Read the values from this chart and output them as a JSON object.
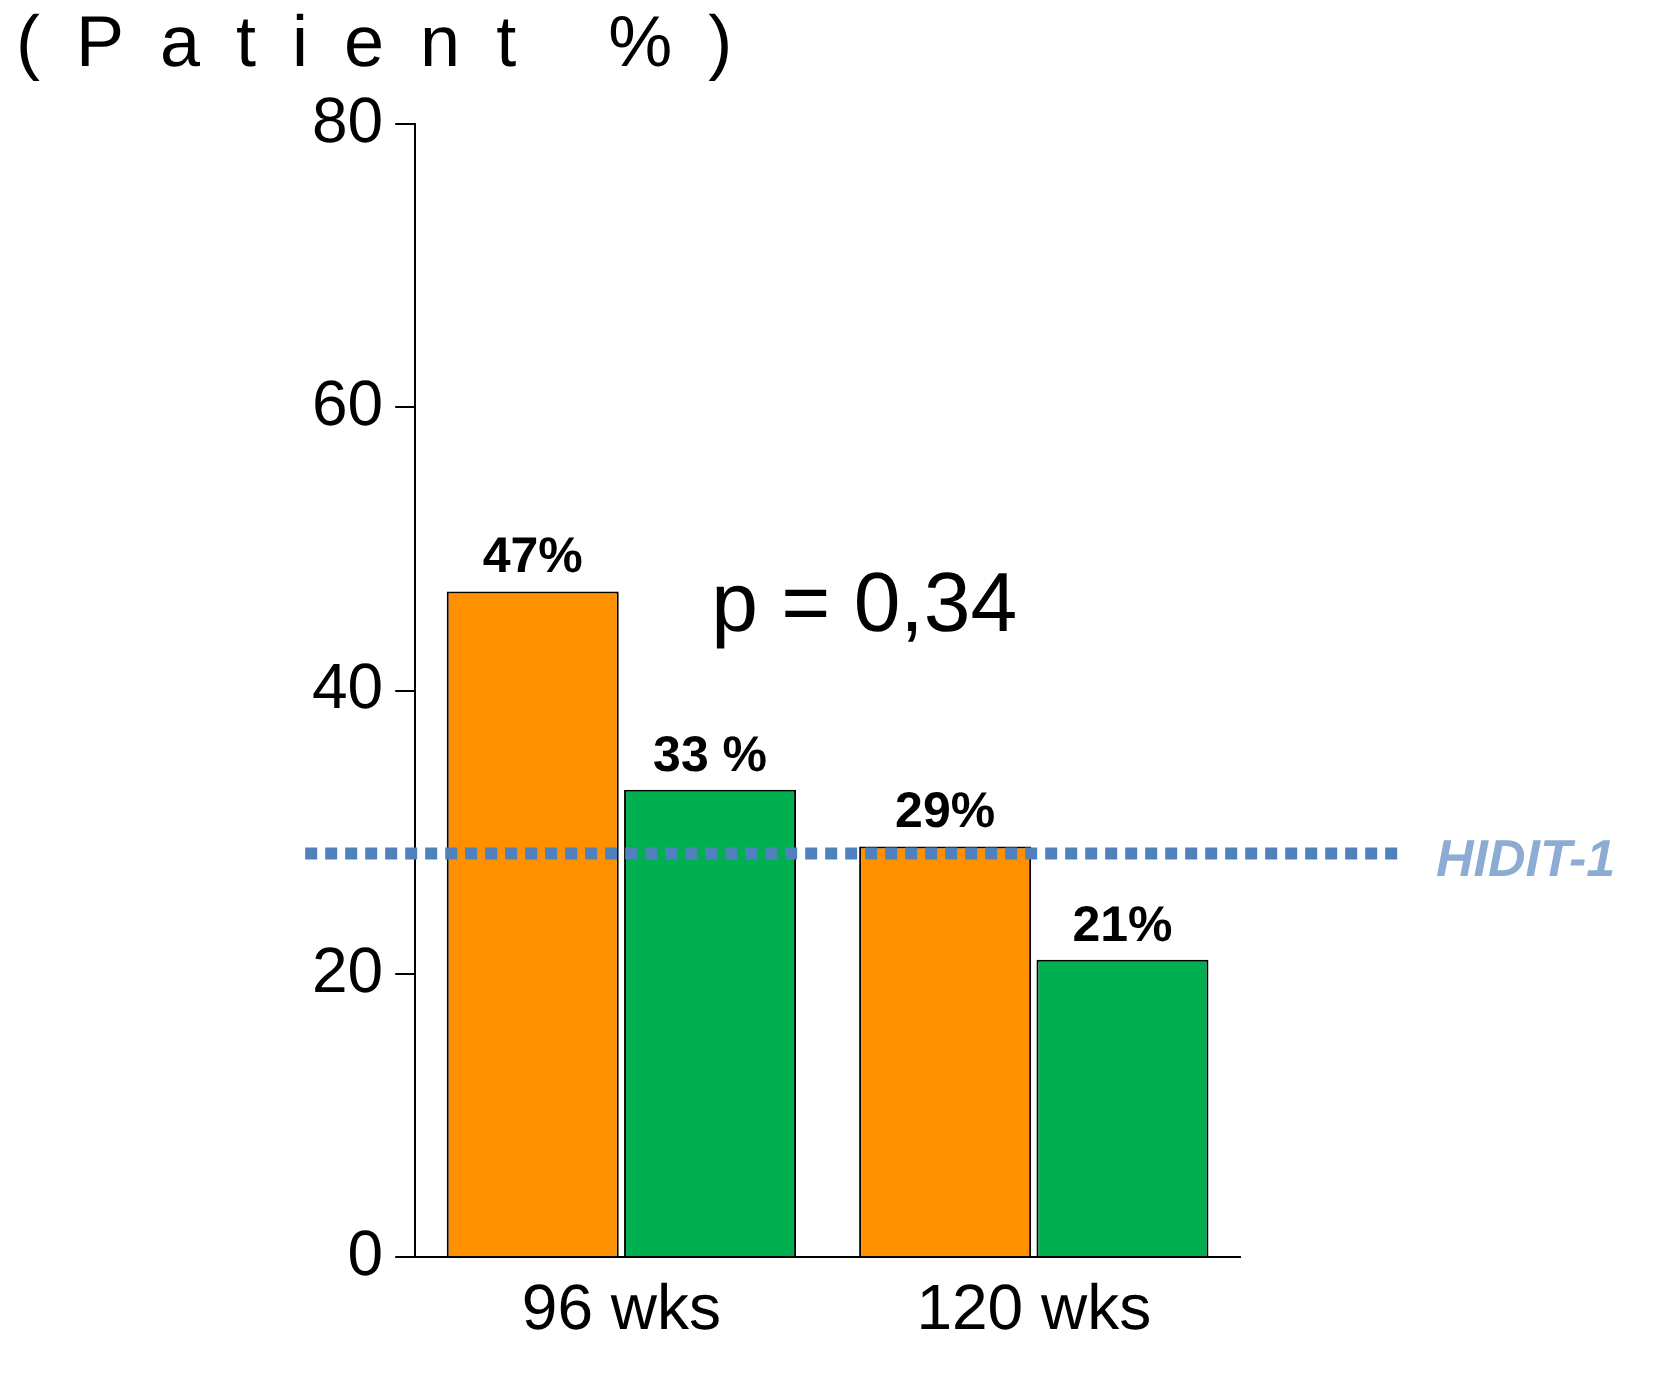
{
  "chart_data": {
    "type": "bar",
    "ylabel": "(Patient %)",
    "categories": [
      "96 wks",
      "120 wks"
    ],
    "series": [
      {
        "color": "#ff9000",
        "values": [
          47,
          29
        ],
        "value_labels": [
          "47%",
          "29%"
        ]
      },
      {
        "color": "#00b050",
        "values": [
          33,
          21
        ],
        "value_labels": [
          "33 %",
          "21%"
        ]
      }
    ],
    "ylim": [
      0,
      80
    ],
    "yticks": [
      0,
      20,
      40,
      60,
      80
    ],
    "grid": false,
    "legend": false,
    "ref_lines": [
      {
        "axis": "y",
        "value": 28.5,
        "label": "HIDIT-1",
        "color": "#4f81bd",
        "line_style": "dotted"
      }
    ],
    "annotations": [
      "p = 0,34"
    ]
  }
}
